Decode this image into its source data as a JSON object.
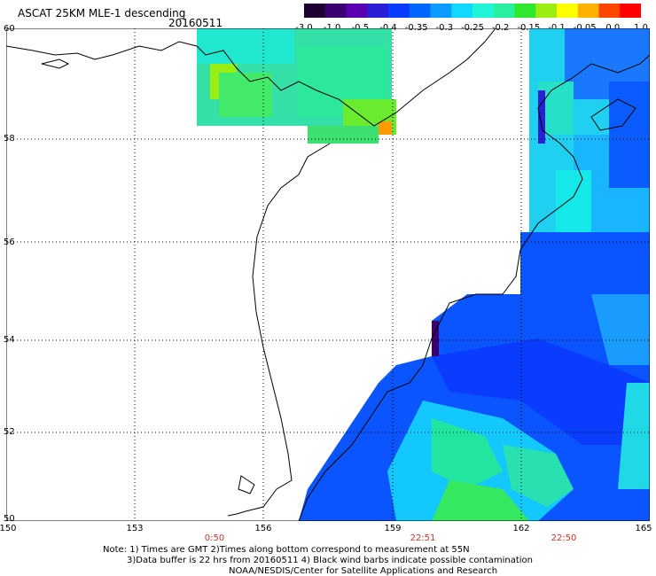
{
  "header": {
    "title": "ASCAT 25KM MLE-1 descending",
    "date": "20160511"
  },
  "colorbar": {
    "labels": [
      "-3.0",
      "-1.0",
      "-0.5",
      "-0.4",
      "-0.35",
      "-0.3",
      "-0.25",
      "-0.2",
      "-0.15",
      "-0.1",
      "-0.05",
      "0.0",
      "1.0"
    ],
    "colors": [
      "#1c0030",
      "#3a0070",
      "#5a00b0",
      "#2a1fd6",
      "#0a3cff",
      "#0066ff",
      "#0a9dff",
      "#12d7ff",
      "#20f5d8",
      "#28f0a0",
      "#2de82d",
      "#9aee14",
      "#ffff00",
      "#ffb000",
      "#ff4500",
      "#ff0000"
    ]
  },
  "map": {
    "lat_labels": [
      "60",
      "58",
      "56",
      "54",
      "52",
      "50"
    ],
    "lon_labels": [
      "150",
      "153",
      "156",
      "159",
      "162",
      "165"
    ],
    "time_labels": [
      "0:50",
      "22:51",
      "22:50"
    ]
  },
  "notes": {
    "line1": "Note: 1) Times are GMT 2)Times along bottom correspond to measurement at 55N",
    "line2": "3)Data buffer is 22 hrs from 20160511 4) Black wind barbs indicate possible contamination",
    "line3": "NOAA/NESDIS/Center for Satellite Applications and Research"
  }
}
